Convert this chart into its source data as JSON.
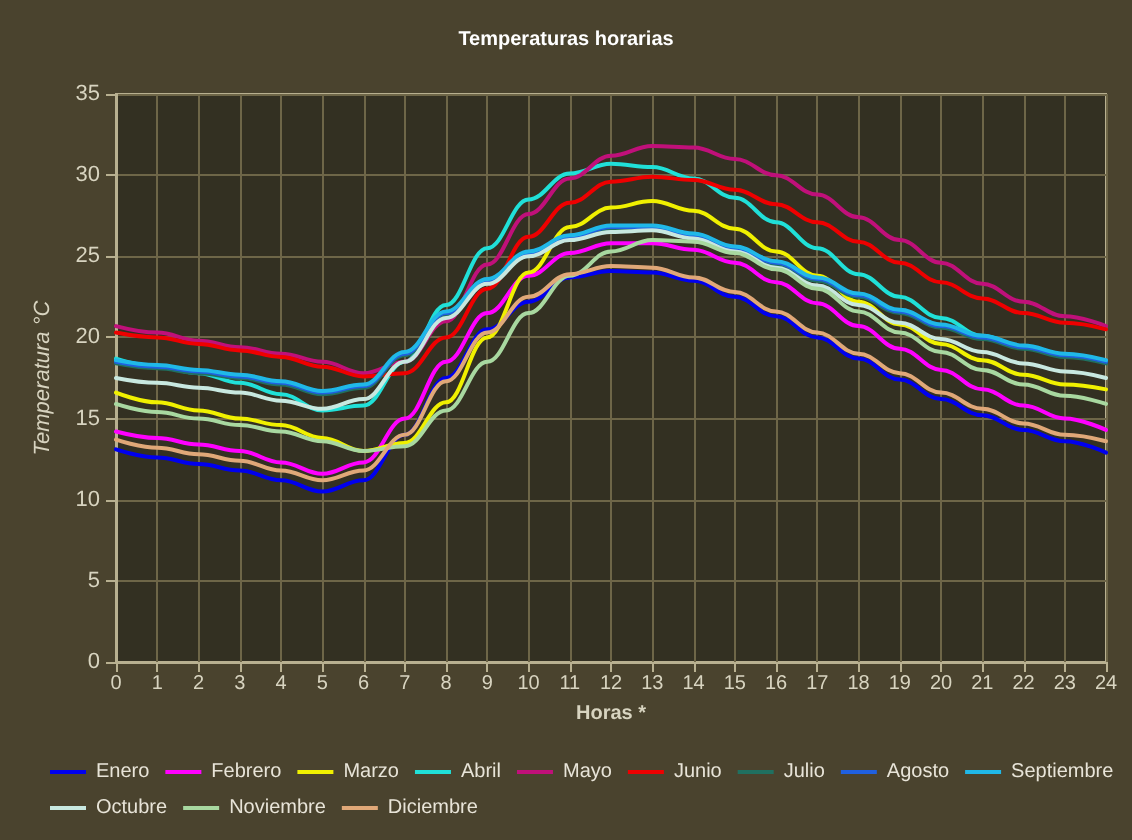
{
  "chart_data": {
    "type": "line",
    "title": "Temperaturas horarias",
    "xlabel": "Horas *",
    "ylabel": "Temperatura °C",
    "x": [
      0,
      1,
      2,
      3,
      4,
      5,
      6,
      7,
      8,
      9,
      10,
      11,
      12,
      13,
      14,
      15,
      16,
      17,
      18,
      19,
      20,
      21,
      22,
      23,
      24
    ],
    "xlim": [
      0,
      24
    ],
    "xticks": [
      0,
      1,
      2,
      3,
      4,
      5,
      6,
      7,
      8,
      9,
      10,
      11,
      12,
      13,
      14,
      15,
      16,
      17,
      18,
      19,
      20,
      21,
      22,
      23,
      24
    ],
    "ylim": [
      0,
      35
    ],
    "yticks": [
      0,
      5,
      10,
      15,
      20,
      25,
      30,
      35
    ],
    "grid": true,
    "legend": "bottom",
    "marker": "none",
    "line_style": "solid",
    "series": [
      {
        "name": "Enero",
        "color": "#0000ee",
        "values": [
          13.1,
          12.6,
          12.2,
          11.8,
          11.2,
          10.5,
          11.2,
          14,
          17.5,
          20.5,
          22.2,
          23.7,
          24.1,
          24,
          23.5,
          22.5,
          21.3,
          20,
          18.7,
          17.4,
          16.2,
          15.2,
          14.3,
          13.6,
          12.9
        ]
      },
      {
        "name": "Febrero",
        "color": "#ff00ff",
        "values": [
          14.2,
          13.8,
          13.4,
          13,
          12.3,
          11.6,
          12.3,
          15,
          18.5,
          21.5,
          23.8,
          25.2,
          25.8,
          25.8,
          25.4,
          24.6,
          23.4,
          22.1,
          20.7,
          19.3,
          18,
          16.8,
          15.8,
          15,
          14.3
        ]
      },
      {
        "name": "Marzo",
        "color": "#f0f000",
        "values": [
          16.6,
          16,
          15.5,
          15,
          14.6,
          13.8,
          13,
          13.5,
          16,
          20,
          24,
          26.8,
          28,
          28.4,
          27.8,
          26.7,
          25.3,
          23.8,
          22.2,
          20.8,
          19.6,
          18.6,
          17.7,
          17.1,
          16.8
        ]
      },
      {
        "name": "Abril",
        "color": "#20e0d8",
        "values": [
          18.7,
          18.2,
          17.8,
          17.2,
          16.5,
          15.5,
          15.8,
          18.5,
          22,
          25.5,
          28.5,
          30.1,
          30.7,
          30.5,
          29.8,
          28.6,
          27.1,
          25.5,
          23.9,
          22.5,
          21.2,
          20.1,
          19.4,
          18.9,
          18.5
        ]
      },
      {
        "name": "Mayo",
        "color": "#c0107a",
        "values": [
          20.7,
          20.3,
          19.8,
          19.4,
          19,
          18.5,
          17.8,
          18.5,
          21,
          24.5,
          27.6,
          29.8,
          31.2,
          31.8,
          31.7,
          31,
          30,
          28.8,
          27.4,
          26,
          24.6,
          23.3,
          22.2,
          21.3,
          20.7
        ]
      },
      {
        "name": "Junio",
        "color": "#ee0000",
        "values": [
          20.3,
          20,
          19.6,
          19.2,
          18.8,
          18.2,
          17.6,
          17.8,
          20,
          23,
          26.2,
          28.3,
          29.6,
          29.9,
          29.7,
          29.1,
          28.2,
          27.1,
          25.9,
          24.6,
          23.4,
          22.4,
          21.5,
          20.9,
          20.5
        ]
      },
      {
        "name": "Julio",
        "color": "#207060",
        "values": [
          18.4,
          18.1,
          17.8,
          17.5,
          17.1,
          16.5,
          16.9,
          18.9,
          21.4,
          23.4,
          25.1,
          26.1,
          26.7,
          26.7,
          26.2,
          25.4,
          24.5,
          23.5,
          22.5,
          21.5,
          20.6,
          19.9,
          19.3,
          18.8,
          18.4
        ]
      },
      {
        "name": "Agosto",
        "color": "#2060e0",
        "values": [
          18.5,
          18.2,
          17.9,
          17.6,
          17.2,
          16.6,
          17,
          19,
          21.5,
          23.5,
          25.2,
          26.2,
          26.8,
          26.8,
          26.3,
          25.5,
          24.6,
          23.6,
          22.6,
          21.6,
          20.7,
          20,
          19.4,
          18.9,
          18.5
        ]
      },
      {
        "name": "Septiembre",
        "color": "#20b8e8",
        "values": [
          18.6,
          18.3,
          18,
          17.7,
          17.3,
          16.7,
          17.1,
          19.1,
          21.6,
          23.6,
          25.3,
          26.3,
          26.9,
          26.9,
          26.4,
          25.6,
          24.7,
          23.7,
          22.7,
          21.7,
          20.8,
          20.1,
          19.5,
          19,
          18.6
        ]
      },
      {
        "name": "Octubre",
        "color": "#c8e8e0",
        "values": [
          17.5,
          17.2,
          16.9,
          16.6,
          16.1,
          15.6,
          16.2,
          18.5,
          21.2,
          23.3,
          25,
          26,
          26.5,
          26.6,
          26.1,
          25.3,
          24.3,
          23.2,
          22,
          20.9,
          19.9,
          19.1,
          18.4,
          17.9,
          17.5
        ]
      },
      {
        "name": "Noviembre",
        "color": "#a8d8a0",
        "values": [
          15.9,
          15.4,
          15,
          14.6,
          14.2,
          13.6,
          13,
          13.3,
          15.5,
          18.5,
          21.5,
          23.8,
          25.3,
          26,
          25.9,
          25.2,
          24.2,
          23,
          21.6,
          20.3,
          19.1,
          18,
          17.1,
          16.4,
          15.9
        ]
      },
      {
        "name": "Diciembre",
        "color": "#e0a878",
        "values": [
          13.7,
          13.2,
          12.8,
          12.4,
          11.8,
          11.2,
          11.8,
          14,
          17.3,
          20.3,
          22.5,
          23.9,
          24.4,
          24.3,
          23.7,
          22.8,
          21.6,
          20.3,
          19,
          17.8,
          16.6,
          15.6,
          14.7,
          14,
          13.6
        ]
      }
    ]
  }
}
